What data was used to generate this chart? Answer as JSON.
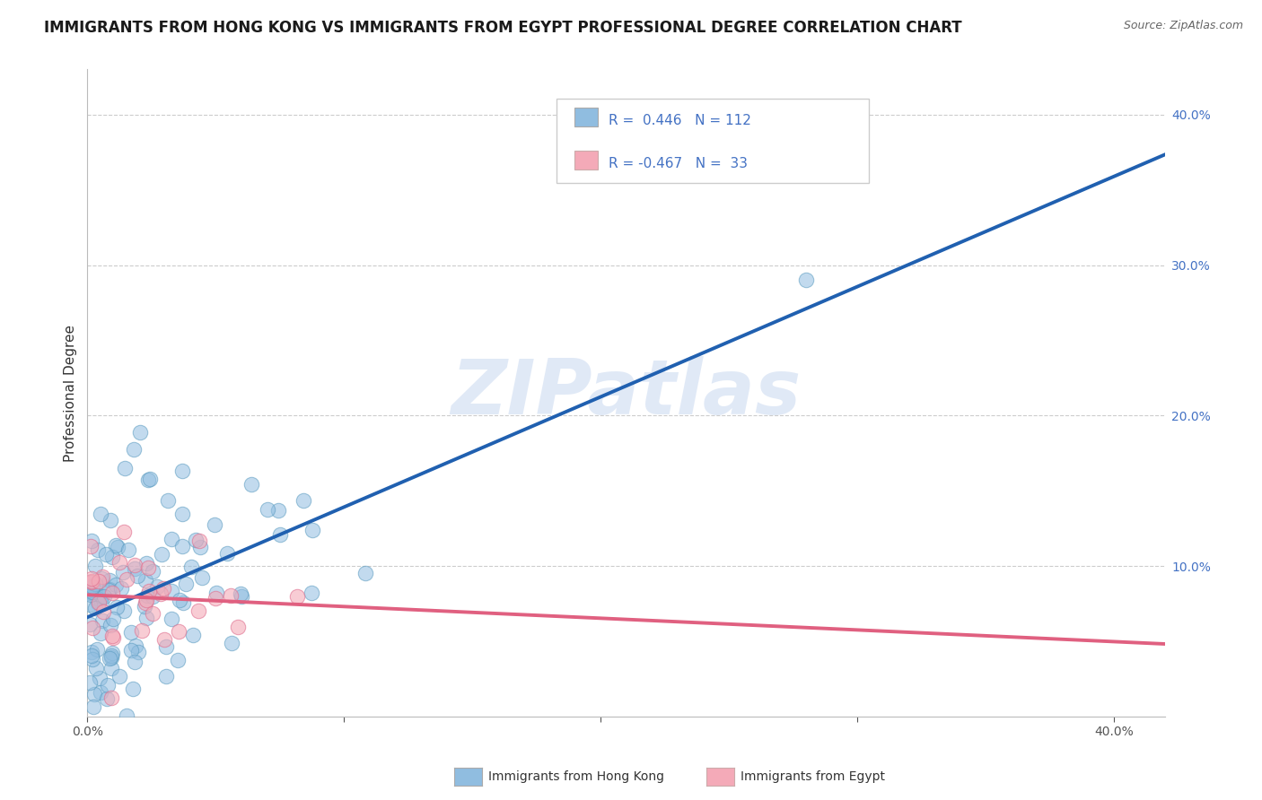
{
  "title": "IMMIGRANTS FROM HONG KONG VS IMMIGRANTS FROM EGYPT PROFESSIONAL DEGREE CORRELATION CHART",
  "source": "Source: ZipAtlas.com",
  "ylabel": "Professional Degree",
  "watermark": "ZIPatlas",
  "hk_color": "#90bde0",
  "hk_edge_color": "#5a9bc0",
  "egypt_color": "#f4aab8",
  "egypt_edge_color": "#e07090",
  "hk_line_color": "#2060b0",
  "egypt_line_color": "#e06080",
  "xlim": [
    0.0,
    0.42
  ],
  "ylim": [
    0.0,
    0.43
  ],
  "right_ytick_vals": [
    0.1,
    0.2,
    0.3,
    0.4
  ],
  "right_yticklabels": [
    "10.0%",
    "20.0%",
    "30.0%",
    "40.0%"
  ],
  "background_color": "#ffffff",
  "grid_color": "#cccccc",
  "title_fontsize": 12,
  "source_fontsize": 9,
  "axis_label_fontsize": 11,
  "tick_fontsize": 10,
  "watermark_color": "#c8d8f0",
  "legend_label1": "R =  0.446   N = 112",
  "legend_label2": "R = -0.467   N =  33",
  "legend_color": "#4472c4",
  "bottom_label1": "Immigrants from Hong Kong",
  "bottom_label2": "Immigrants from Egypt"
}
